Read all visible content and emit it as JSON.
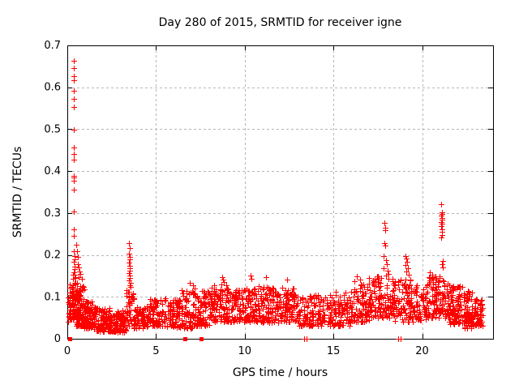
{
  "chart_data": {
    "type": "scatter",
    "title": "Day 280 of 2015, SRMTID for receiver igne",
    "xlabel": "GPS time / hours",
    "ylabel": "SRMTID / TECUs",
    "xlim": [
      0,
      24
    ],
    "ylim": [
      0,
      0.7
    ],
    "xticks": [
      0,
      5,
      10,
      15,
      20
    ],
    "yticks": [
      0,
      0.1,
      0.2,
      0.3,
      0.4,
      0.5,
      0.6,
      0.7
    ],
    "grid": true,
    "legend": "none",
    "marker": {
      "shape": "plus",
      "size": 7,
      "color": "#ff0000",
      "zero_marker": "square"
    },
    "colors": {
      "points": "#ff0000",
      "grid": "#b6b6b6",
      "axis": "#000000",
      "background": "#ffffff",
      "text": "#000000"
    },
    "seed": 280,
    "feature_points": [
      [
        0.36,
        0.664
      ],
      [
        0.37,
        0.645
      ],
      [
        0.37,
        0.626
      ],
      [
        0.38,
        0.617
      ],
      [
        0.36,
        0.592
      ],
      [
        0.38,
        0.572
      ],
      [
        0.37,
        0.553
      ],
      [
        0.37,
        0.498
      ],
      [
        0.38,
        0.456
      ],
      [
        0.37,
        0.441
      ],
      [
        0.38,
        0.428
      ],
      [
        0.36,
        0.388
      ],
      [
        0.38,
        0.384
      ],
      [
        0.37,
        0.377
      ],
      [
        0.37,
        0.355
      ],
      [
        0.38,
        0.303
      ],
      [
        0.37,
        0.262
      ],
      [
        0.38,
        0.246
      ],
      [
        0.36,
        0.208
      ],
      [
        0.39,
        0.198
      ],
      [
        0.41,
        0.19
      ],
      [
        0.35,
        0.183
      ],
      [
        0.43,
        0.173
      ],
      [
        0.4,
        0.166
      ],
      [
        0.37,
        0.158
      ],
      [
        0.42,
        0.152
      ],
      [
        0.45,
        0.147
      ],
      [
        0.3,
        0.152
      ],
      [
        0.33,
        0.144
      ],
      [
        0.52,
        0.224
      ],
      [
        0.55,
        0.209
      ],
      [
        0.6,
        0.196
      ],
      [
        0.58,
        0.178
      ],
      [
        0.65,
        0.17
      ],
      [
        0.7,
        0.161
      ],
      [
        0.75,
        0.154
      ],
      [
        0.62,
        0.147
      ],
      [
        0.8,
        0.143
      ],
      [
        3.47,
        0.228
      ],
      [
        3.5,
        0.216
      ],
      [
        3.49,
        0.203
      ],
      [
        3.52,
        0.195
      ],
      [
        3.5,
        0.189
      ],
      [
        3.48,
        0.181
      ],
      [
        3.53,
        0.175
      ],
      [
        3.5,
        0.169
      ],
      [
        3.51,
        0.162
      ],
      [
        3.49,
        0.156
      ],
      [
        3.54,
        0.15
      ],
      [
        3.5,
        0.145
      ],
      [
        3.47,
        0.139
      ],
      [
        3.56,
        0.133
      ],
      [
        3.52,
        0.128
      ],
      [
        3.58,
        0.123
      ],
      [
        6.9,
        0.133
      ],
      [
        7.1,
        0.128
      ],
      [
        8.72,
        0.147
      ],
      [
        8.78,
        0.141
      ],
      [
        8.83,
        0.136
      ],
      [
        8.68,
        0.13
      ],
      [
        10.32,
        0.15
      ],
      [
        10.36,
        0.143
      ],
      [
        11.2,
        0.146
      ],
      [
        12.4,
        0.141
      ],
      [
        16.3,
        0.148
      ],
      [
        16.5,
        0.141
      ],
      [
        16.2,
        0.138
      ],
      [
        17.88,
        0.277
      ],
      [
        17.92,
        0.264
      ],
      [
        17.9,
        0.259
      ],
      [
        17.88,
        0.228
      ],
      [
        17.93,
        0.222
      ],
      [
        17.85,
        0.197
      ],
      [
        17.95,
        0.187
      ],
      [
        18.0,
        0.177
      ],
      [
        17.82,
        0.168
      ],
      [
        18.05,
        0.162
      ],
      [
        19.05,
        0.198
      ],
      [
        19.1,
        0.191
      ],
      [
        19.15,
        0.184
      ],
      [
        19.08,
        0.176
      ],
      [
        19.2,
        0.168
      ],
      [
        19.12,
        0.16
      ],
      [
        19.25,
        0.153
      ],
      [
        20.45,
        0.158
      ],
      [
        20.55,
        0.152
      ],
      [
        21.08,
        0.321
      ],
      [
        21.1,
        0.302
      ],
      [
        21.12,
        0.297
      ],
      [
        21.06,
        0.293
      ],
      [
        21.14,
        0.288
      ],
      [
        21.1,
        0.284
      ],
      [
        21.09,
        0.279
      ],
      [
        21.13,
        0.274
      ],
      [
        21.07,
        0.268
      ],
      [
        21.11,
        0.262
      ],
      [
        21.1,
        0.256
      ],
      [
        21.12,
        0.248
      ],
      [
        21.08,
        0.241
      ],
      [
        21.15,
        0.185
      ],
      [
        21.1,
        0.177
      ],
      [
        21.18,
        0.17
      ]
    ],
    "zero_points": {
      "square_x": [
        0.15,
        6.63,
        7.54
      ],
      "plus_x": [
        13.35,
        13.47,
        18.65,
        18.77
      ]
    },
    "noise_bands": [
      [
        0.02,
        0.15,
        15,
        0.04,
        0.105,
        1.3
      ],
      [
        0.12,
        0.35,
        35,
        0.045,
        0.135,
        1.4
      ],
      [
        0.3,
        0.55,
        45,
        0.05,
        0.148,
        1.3
      ],
      [
        0.5,
        0.95,
        95,
        0.03,
        0.125,
        1.5
      ],
      [
        0.9,
        1.5,
        85,
        0.025,
        0.09,
        1.4
      ],
      [
        1.5,
        2.4,
        120,
        0.018,
        0.075,
        1.4
      ],
      [
        2.4,
        3.3,
        110,
        0.015,
        0.07,
        1.4
      ],
      [
        3.3,
        3.75,
        45,
        0.03,
        0.125,
        1.3
      ],
      [
        3.75,
        4.5,
        70,
        0.025,
        0.082,
        1.4
      ],
      [
        4.5,
        5.4,
        80,
        0.03,
        0.095,
        1.5
      ],
      [
        5.4,
        6.3,
        75,
        0.028,
        0.1,
        1.5
      ],
      [
        6.3,
        7.2,
        85,
        0.025,
        0.12,
        1.5
      ],
      [
        7.2,
        8.0,
        80,
        0.03,
        0.115,
        1.5
      ],
      [
        8.0,
        9.0,
        95,
        0.04,
        0.128,
        1.4
      ],
      [
        9.0,
        10.0,
        95,
        0.04,
        0.12,
        1.3
      ],
      [
        10.0,
        11.0,
        100,
        0.04,
        0.128,
        1.3
      ],
      [
        11.0,
        12.0,
        100,
        0.038,
        0.125,
        1.3
      ],
      [
        12.0,
        13.0,
        95,
        0.04,
        0.122,
        1.3
      ],
      [
        13.0,
        14.5,
        120,
        0.03,
        0.108,
        1.4
      ],
      [
        14.5,
        16.0,
        115,
        0.03,
        0.112,
        1.4
      ],
      [
        16.0,
        17.0,
        90,
        0.04,
        0.13,
        1.3
      ],
      [
        17.0,
        17.8,
        80,
        0.05,
        0.15,
        1.2
      ],
      [
        17.8,
        18.4,
        55,
        0.05,
        0.155,
        1.2
      ],
      [
        18.4,
        19.5,
        100,
        0.04,
        0.142,
        1.3
      ],
      [
        19.5,
        20.2,
        60,
        0.045,
        0.128,
        1.3
      ],
      [
        20.2,
        21.0,
        85,
        0.05,
        0.15,
        1.25
      ],
      [
        21.0,
        21.5,
        45,
        0.05,
        0.14,
        1.3
      ],
      [
        21.5,
        22.3,
        95,
        0.035,
        0.128,
        1.4
      ],
      [
        22.3,
        22.85,
        70,
        0.025,
        0.115,
        1.3
      ],
      [
        22.85,
        23.4,
        65,
        0.03,
        0.095,
        1.2
      ]
    ]
  }
}
